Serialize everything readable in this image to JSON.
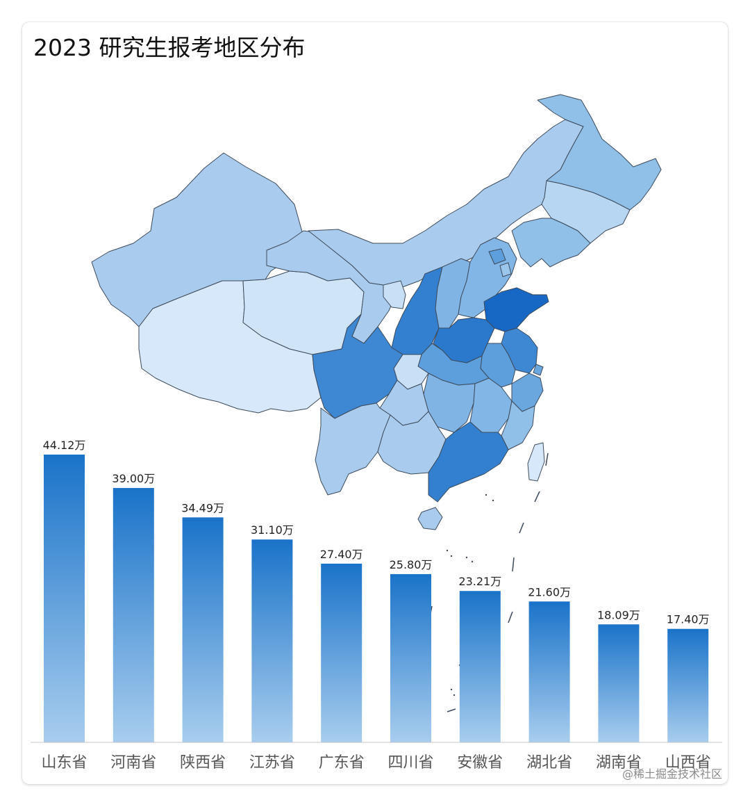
{
  "title": "2023 研究生报考地区分布",
  "watermark": "@稀土掘金技术社区",
  "colors": {
    "bar_top": "#1a73c9",
    "bar_bottom": "#a8cdee",
    "map_stroke": "#3d4a5a",
    "axis": "#c0c4cc"
  },
  "chart_data": [
    {
      "type": "map",
      "region": "China provinces (choropleth, darker = more applicants)"
    },
    {
      "type": "bar",
      "categories": [
        "山东省",
        "河南省",
        "陕西省",
        "江苏省",
        "广东省",
        "四川省",
        "安徽省",
        "湖北省",
        "湖南省",
        "山西省"
      ],
      "values": [
        44.12,
        39.0,
        34.49,
        31.1,
        27.4,
        25.8,
        23.21,
        21.6,
        18.09,
        17.4
      ],
      "value_labels": [
        "44.12万",
        "39.00万",
        "34.49万",
        "31.10万",
        "27.40万",
        "25.80万",
        "23.21万",
        "21.60万",
        "18.09万",
        "17.40万"
      ],
      "unit": "万",
      "ylim": [
        0,
        44.12
      ],
      "grid": false,
      "legend": "none"
    }
  ]
}
